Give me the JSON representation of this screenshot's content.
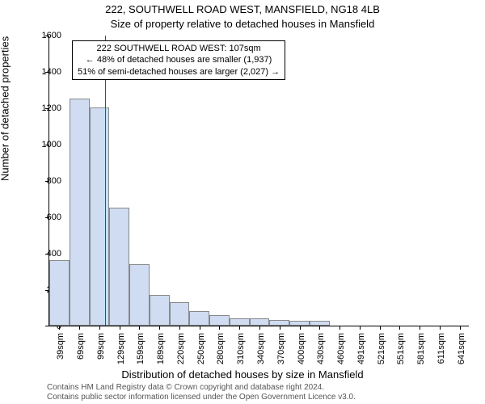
{
  "title": "222, SOUTHWELL ROAD WEST, MANSFIELD, NG18 4LB",
  "subtitle": "Size of property relative to detached houses in Mansfield",
  "ylabel": "Number of detached properties",
  "xlabel": "Distribution of detached houses by size in Mansfield",
  "chart": {
    "type": "histogram",
    "ylim": [
      0,
      1600
    ],
    "yticks": [
      0,
      200,
      400,
      600,
      800,
      1000,
      1200,
      1400,
      1600
    ],
    "categories": [
      "39sqm",
      "69sqm",
      "99sqm",
      "129sqm",
      "159sqm",
      "189sqm",
      "220sqm",
      "250sqm",
      "280sqm",
      "310sqm",
      "340sqm",
      "370sqm",
      "400sqm",
      "430sqm",
      "460sqm",
      "491sqm",
      "521sqm",
      "551sqm",
      "581sqm",
      "611sqm",
      "641sqm"
    ],
    "values": [
      360,
      1250,
      1200,
      650,
      340,
      170,
      130,
      80,
      60,
      40,
      40,
      30,
      25,
      25,
      0,
      0,
      0,
      0,
      0,
      0,
      0
    ],
    "bar_fill": "#cfdcf2",
    "bar_border": "#888888",
    "background_color": "#ffffff",
    "axis_color": "#000000",
    "tick_fontsize": 11,
    "label_fontsize": 13,
    "title_fontsize": 13,
    "marker": {
      "position_sqm": 107,
      "color": "#ff0000"
    },
    "bin_start": 24,
    "bin_width": 30
  },
  "annotation": {
    "line1": "222 SOUTHWELL ROAD WEST: 107sqm",
    "line2": "← 48% of detached houses are smaller (1,937)",
    "line3": "51% of semi-detached houses are larger (2,027) →"
  },
  "footer": {
    "line1": "Contains HM Land Registry data © Crown copyright and database right 2024.",
    "line2": "Contains public sector information licensed under the Open Government Licence v3.0."
  }
}
